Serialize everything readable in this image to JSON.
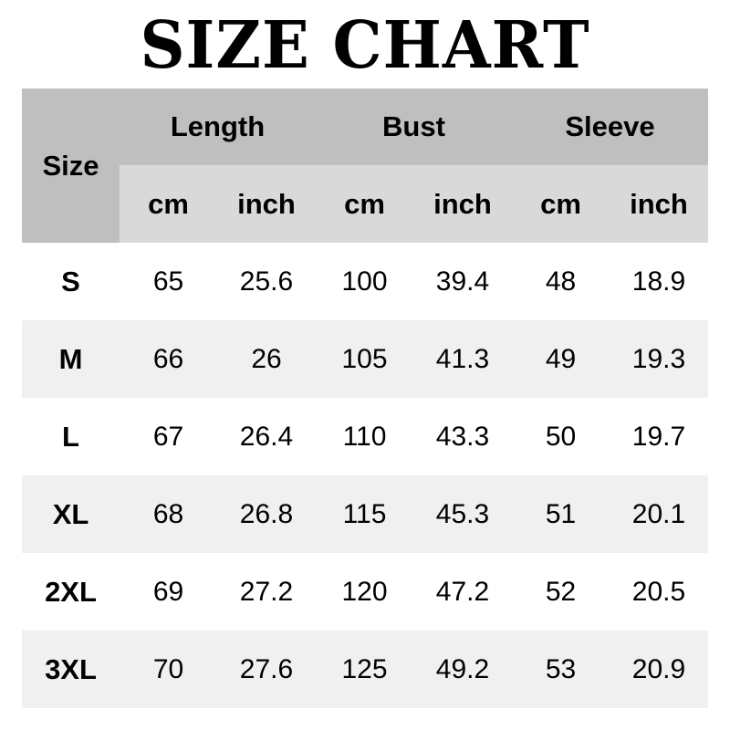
{
  "title": "SIZE CHART",
  "header": {
    "size": "Size",
    "groups": [
      "Length",
      "Bust",
      "Sleeve"
    ],
    "units": [
      "cm",
      "inch",
      "cm",
      "inch",
      "cm",
      "inch"
    ]
  },
  "colors": {
    "header_dark": "#bfbfbf",
    "header_light": "#d9d9d9",
    "row_alt": "#f0f0f0"
  },
  "rows": [
    {
      "size": "S",
      "values": [
        "65",
        "25.6",
        "100",
        "39.4",
        "48",
        "18.9"
      ]
    },
    {
      "size": "M",
      "values": [
        "66",
        "26",
        "105",
        "41.3",
        "49",
        "19.3"
      ]
    },
    {
      "size": "L",
      "values": [
        "67",
        "26.4",
        "110",
        "43.3",
        "50",
        "19.7"
      ]
    },
    {
      "size": "XL",
      "values": [
        "68",
        "26.8",
        "115",
        "45.3",
        "51",
        "20.1"
      ]
    },
    {
      "size": "2XL",
      "values": [
        "69",
        "27.2",
        "120",
        "47.2",
        "52",
        "20.5"
      ]
    },
    {
      "size": "3XL",
      "values": [
        "70",
        "27.6",
        "125",
        "49.2",
        "53",
        "20.9"
      ]
    }
  ]
}
